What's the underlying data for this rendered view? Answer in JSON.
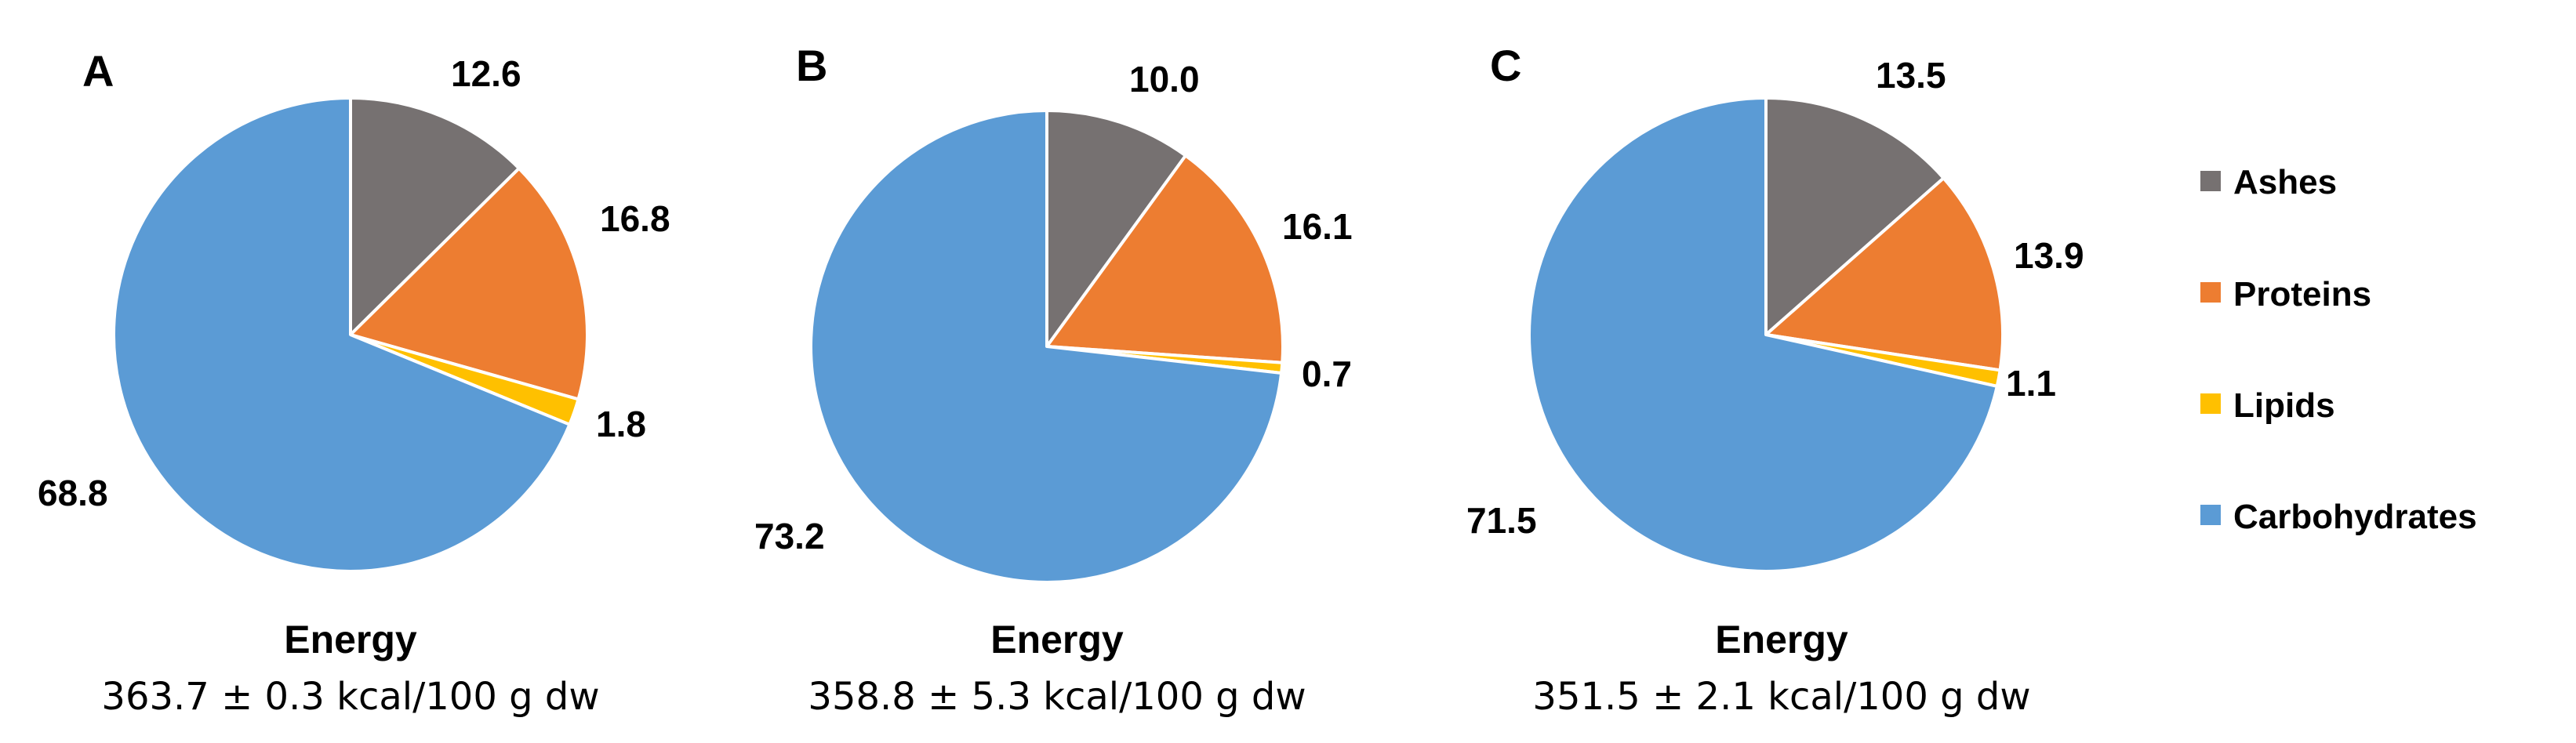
{
  "legend": [
    {
      "name": "Ashes",
      "color": "#767171"
    },
    {
      "name": "Proteins",
      "color": "#ED7D31"
    },
    {
      "name": "Lipids",
      "color": "#FFC000"
    },
    {
      "name": "Carbohydrates",
      "color": "#5B9BD5"
    }
  ],
  "chart_data": [
    {
      "type": "pie",
      "panel": "A",
      "categories": [
        "Ashes",
        "Proteins",
        "Lipids",
        "Carbohydrates"
      ],
      "values": [
        12.6,
        16.8,
        1.8,
        68.8
      ],
      "value_labels": [
        "12.6",
        "16.8",
        "1.8",
        "68.8"
      ],
      "energy_title": "Energy",
      "energy_value": "363.7 ± 0.3 kcal/100 g dw"
    },
    {
      "type": "pie",
      "panel": "B",
      "categories": [
        "Ashes",
        "Proteins",
        "Lipids",
        "Carbohydrates"
      ],
      "values": [
        10.0,
        16.1,
        0.7,
        73.2
      ],
      "value_labels": [
        "10.0",
        "16.1",
        "0.7",
        "73.2"
      ],
      "energy_title": "Energy",
      "energy_value": "358.8 ± 5.3 kcal/100 g dw"
    },
    {
      "type": "pie",
      "panel": "C",
      "categories": [
        "Ashes",
        "Proteins",
        "Lipids",
        "Carbohydrates"
      ],
      "values": [
        13.5,
        13.9,
        1.1,
        71.5
      ],
      "value_labels": [
        "13.5",
        "13.9",
        "1.1",
        "71.5"
      ],
      "energy_title": "Energy",
      "energy_value": "351.5 ± 2.1 kcal/100 g dw"
    }
  ]
}
